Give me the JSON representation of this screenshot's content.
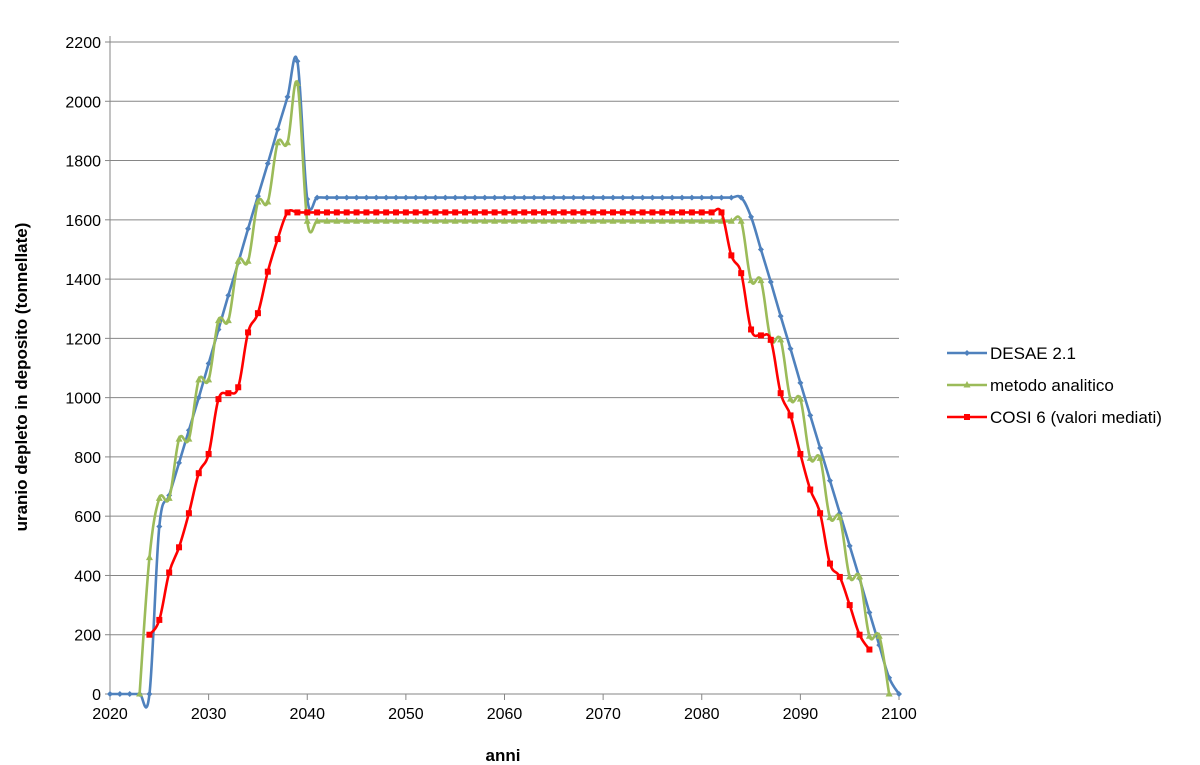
{
  "chart_data": {
    "type": "line",
    "title": "",
    "xlabel": "anni",
    "ylabel": "uranio depleto in deposito (tonnellate)",
    "xlim": [
      2020,
      2100
    ],
    "ylim": [
      0,
      2200
    ],
    "xticks": [
      2020,
      2030,
      2040,
      2050,
      2060,
      2070,
      2080,
      2090,
      2100
    ],
    "yticks": [
      0,
      200,
      400,
      600,
      800,
      1000,
      1200,
      1400,
      1600,
      1800,
      2000,
      2200
    ],
    "grid": "horizontal",
    "legend_position": "right",
    "series": [
      {
        "name": "DESAE 2.1",
        "color": "#4F81BD",
        "marker": "diamond",
        "points": [
          [
            2020,
            0
          ],
          [
            2021,
            0
          ],
          [
            2022,
            0
          ],
          [
            2023,
            0
          ],
          [
            2024,
            0
          ],
          [
            2025,
            565
          ],
          [
            2026,
            670
          ],
          [
            2027,
            780
          ],
          [
            2028,
            890
          ],
          [
            2029,
            1000
          ],
          [
            2030,
            1115
          ],
          [
            2031,
            1230
          ],
          [
            2032,
            1345
          ],
          [
            2033,
            1455
          ],
          [
            2034,
            1570
          ],
          [
            2035,
            1680
          ],
          [
            2036,
            1790
          ],
          [
            2037,
            1905
          ],
          [
            2038,
            2015
          ],
          [
            2039,
            2135
          ],
          [
            2040,
            1670
          ],
          [
            2041,
            1675
          ],
          [
            2042,
            1675
          ],
          [
            2043,
            1675
          ],
          [
            2044,
            1675
          ],
          [
            2045,
            1675
          ],
          [
            2046,
            1675
          ],
          [
            2047,
            1675
          ],
          [
            2048,
            1675
          ],
          [
            2049,
            1675
          ],
          [
            2050,
            1675
          ],
          [
            2051,
            1675
          ],
          [
            2052,
            1675
          ],
          [
            2053,
            1675
          ],
          [
            2054,
            1675
          ],
          [
            2055,
            1675
          ],
          [
            2056,
            1675
          ],
          [
            2057,
            1675
          ],
          [
            2058,
            1675
          ],
          [
            2059,
            1675
          ],
          [
            2060,
            1675
          ],
          [
            2061,
            1675
          ],
          [
            2062,
            1675
          ],
          [
            2063,
            1675
          ],
          [
            2064,
            1675
          ],
          [
            2065,
            1675
          ],
          [
            2066,
            1675
          ],
          [
            2067,
            1675
          ],
          [
            2068,
            1675
          ],
          [
            2069,
            1675
          ],
          [
            2070,
            1675
          ],
          [
            2071,
            1675
          ],
          [
            2072,
            1675
          ],
          [
            2073,
            1675
          ],
          [
            2074,
            1675
          ],
          [
            2075,
            1675
          ],
          [
            2076,
            1675
          ],
          [
            2077,
            1675
          ],
          [
            2078,
            1675
          ],
          [
            2079,
            1675
          ],
          [
            2080,
            1675
          ],
          [
            2081,
            1675
          ],
          [
            2082,
            1675
          ],
          [
            2083,
            1675
          ],
          [
            2084,
            1675
          ],
          [
            2085,
            1610
          ],
          [
            2086,
            1500
          ],
          [
            2087,
            1390
          ],
          [
            2088,
            1275
          ],
          [
            2089,
            1165
          ],
          [
            2090,
            1050
          ],
          [
            2091,
            940
          ],
          [
            2092,
            830
          ],
          [
            2093,
            720
          ],
          [
            2094,
            610
          ],
          [
            2095,
            500
          ],
          [
            2096,
            390
          ],
          [
            2097,
            275
          ],
          [
            2098,
            165
          ],
          [
            2099,
            55
          ],
          [
            2100,
            0
          ]
        ]
      },
      {
        "name": "metodo analitico",
        "color": "#9BBB59",
        "marker": "triangle",
        "points": [
          [
            2023,
            0
          ],
          [
            2024,
            460
          ],
          [
            2025,
            660
          ],
          [
            2026,
            660
          ],
          [
            2027,
            860
          ],
          [
            2028,
            860
          ],
          [
            2029,
            1060
          ],
          [
            2030,
            1060
          ],
          [
            2031,
            1260
          ],
          [
            2032,
            1260
          ],
          [
            2033,
            1460
          ],
          [
            2034,
            1460
          ],
          [
            2035,
            1660
          ],
          [
            2036,
            1660
          ],
          [
            2037,
            1860
          ],
          [
            2038,
            1860
          ],
          [
            2039,
            2060
          ],
          [
            2040,
            1595
          ],
          [
            2041,
            1595
          ],
          [
            2042,
            1595
          ],
          [
            2043,
            1595
          ],
          [
            2044,
            1595
          ],
          [
            2045,
            1595
          ],
          [
            2046,
            1595
          ],
          [
            2047,
            1595
          ],
          [
            2048,
            1595
          ],
          [
            2049,
            1595
          ],
          [
            2050,
            1595
          ],
          [
            2051,
            1595
          ],
          [
            2052,
            1595
          ],
          [
            2053,
            1595
          ],
          [
            2054,
            1595
          ],
          [
            2055,
            1595
          ],
          [
            2056,
            1595
          ],
          [
            2057,
            1595
          ],
          [
            2058,
            1595
          ],
          [
            2059,
            1595
          ],
          [
            2060,
            1595
          ],
          [
            2061,
            1595
          ],
          [
            2062,
            1595
          ],
          [
            2063,
            1595
          ],
          [
            2064,
            1595
          ],
          [
            2065,
            1595
          ],
          [
            2066,
            1595
          ],
          [
            2067,
            1595
          ],
          [
            2068,
            1595
          ],
          [
            2069,
            1595
          ],
          [
            2070,
            1595
          ],
          [
            2071,
            1595
          ],
          [
            2072,
            1595
          ],
          [
            2073,
            1595
          ],
          [
            2074,
            1595
          ],
          [
            2075,
            1595
          ],
          [
            2076,
            1595
          ],
          [
            2077,
            1595
          ],
          [
            2078,
            1595
          ],
          [
            2079,
            1595
          ],
          [
            2080,
            1595
          ],
          [
            2081,
            1595
          ],
          [
            2082,
            1595
          ],
          [
            2083,
            1595
          ],
          [
            2084,
            1595
          ],
          [
            2085,
            1395
          ],
          [
            2086,
            1395
          ],
          [
            2087,
            1195
          ],
          [
            2088,
            1195
          ],
          [
            2089,
            995
          ],
          [
            2090,
            995
          ],
          [
            2091,
            795
          ],
          [
            2092,
            795
          ],
          [
            2093,
            595
          ],
          [
            2094,
            595
          ],
          [
            2095,
            395
          ],
          [
            2096,
            395
          ],
          [
            2097,
            195
          ],
          [
            2098,
            195
          ],
          [
            2099,
            0
          ]
        ]
      },
      {
        "name": "COSI 6 (valori mediati)",
        "color": "#FF0000",
        "marker": "square",
        "points": [
          [
            2024,
            200
          ],
          [
            2025,
            250
          ],
          [
            2026,
            410
          ],
          [
            2027,
            495
          ],
          [
            2028,
            610
          ],
          [
            2029,
            745
          ],
          [
            2030,
            810
          ],
          [
            2031,
            995
          ],
          [
            2032,
            1015
          ],
          [
            2033,
            1035
          ],
          [
            2034,
            1220
          ],
          [
            2035,
            1285
          ],
          [
            2036,
            1425
          ],
          [
            2037,
            1535
          ],
          [
            2038,
            1625
          ],
          [
            2039,
            1625
          ],
          [
            2040,
            1625
          ],
          [
            2041,
            1625
          ],
          [
            2042,
            1625
          ],
          [
            2043,
            1625
          ],
          [
            2044,
            1625
          ],
          [
            2045,
            1625
          ],
          [
            2046,
            1625
          ],
          [
            2047,
            1625
          ],
          [
            2048,
            1625
          ],
          [
            2049,
            1625
          ],
          [
            2050,
            1625
          ],
          [
            2051,
            1625
          ],
          [
            2052,
            1625
          ],
          [
            2053,
            1625
          ],
          [
            2054,
            1625
          ],
          [
            2055,
            1625
          ],
          [
            2056,
            1625
          ],
          [
            2057,
            1625
          ],
          [
            2058,
            1625
          ],
          [
            2059,
            1625
          ],
          [
            2060,
            1625
          ],
          [
            2061,
            1625
          ],
          [
            2062,
            1625
          ],
          [
            2063,
            1625
          ],
          [
            2064,
            1625
          ],
          [
            2065,
            1625
          ],
          [
            2066,
            1625
          ],
          [
            2067,
            1625
          ],
          [
            2068,
            1625
          ],
          [
            2069,
            1625
          ],
          [
            2070,
            1625
          ],
          [
            2071,
            1625
          ],
          [
            2072,
            1625
          ],
          [
            2073,
            1625
          ],
          [
            2074,
            1625
          ],
          [
            2075,
            1625
          ],
          [
            2076,
            1625
          ],
          [
            2077,
            1625
          ],
          [
            2078,
            1625
          ],
          [
            2079,
            1625
          ],
          [
            2080,
            1625
          ],
          [
            2081,
            1625
          ],
          [
            2082,
            1625
          ],
          [
            2083,
            1480
          ],
          [
            2084,
            1420
          ],
          [
            2085,
            1230
          ],
          [
            2086,
            1210
          ],
          [
            2087,
            1195
          ],
          [
            2088,
            1015
          ],
          [
            2089,
            940
          ],
          [
            2090,
            810
          ],
          [
            2091,
            690
          ],
          [
            2092,
            610
          ],
          [
            2093,
            440
          ],
          [
            2094,
            395
          ],
          [
            2095,
            300
          ],
          [
            2096,
            200
          ],
          [
            2097,
            150
          ]
        ]
      }
    ]
  }
}
